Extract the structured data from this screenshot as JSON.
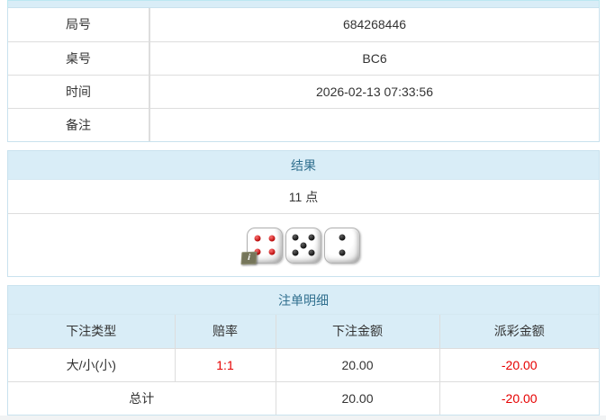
{
  "info_panel": {
    "rows": [
      {
        "label": "局号",
        "value": "684268446"
      },
      {
        "label": "桌号",
        "value": "BC6"
      },
      {
        "label": "时间",
        "value": "2026-02-13 07:33:56"
      },
      {
        "label": "备注",
        "value": ""
      }
    ]
  },
  "result_panel": {
    "title": "结果",
    "points": "11 点",
    "dice": [
      {
        "value": 4,
        "color": "red",
        "badge": "i"
      },
      {
        "value": 5,
        "color": "black",
        "badge": ""
      },
      {
        "value": 2,
        "color": "black",
        "badge": ""
      }
    ]
  },
  "bets_panel": {
    "title": "注单明细",
    "columns": [
      "下注类型",
      "赔率",
      "下注金额",
      "派彩金额"
    ],
    "rows": [
      {
        "type": "大/小(小)",
        "odds": "1:1",
        "amount": "20.00",
        "payout": "-20.00"
      }
    ],
    "total": {
      "label": "总计",
      "amount": "20.00",
      "payout": "-20.00"
    }
  },
  "colors": {
    "heading_bg": "#d9edf7",
    "heading_text": "#31708f",
    "negative_text": "#e60000",
    "outer_border": "#bce8f1",
    "cell_border": "#dddddd"
  }
}
